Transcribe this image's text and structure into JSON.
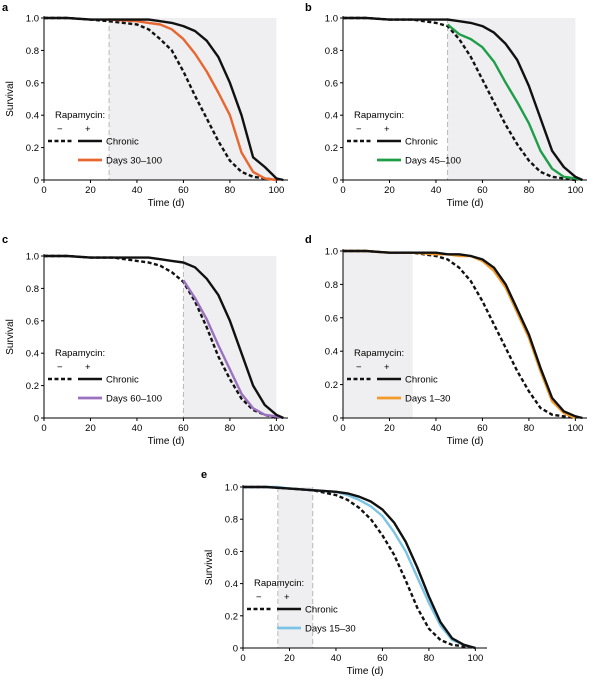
{
  "chart_data": [
    {
      "panel": "a",
      "type": "line",
      "xlabel": "Time (d)",
      "ylabel": "Survival",
      "xlim": [
        0,
        105
      ],
      "ylim": [
        0,
        1.0
      ],
      "xticks": [
        "0",
        "20",
        "40",
        "60",
        "80",
        "100"
      ],
      "yticks": [
        "0",
        "0.2",
        "0.4",
        "0.6",
        "0.8",
        "1.0"
      ],
      "shaded_window": [
        28,
        100
      ],
      "treatment_start_marker": 28,
      "legend": {
        "title": "Rapamycin:",
        "minus": "−",
        "plus": "+",
        "items": [
          "Chronic",
          "Days 30–100"
        ],
        "placement": "bottom-left"
      },
      "series": [
        {
          "role": "control",
          "style": "dashed",
          "color": "#111111",
          "x": [
            0,
            10,
            20,
            28,
            40,
            45,
            50,
            55,
            60,
            65,
            70,
            75,
            80,
            85,
            90,
            95,
            100
          ],
          "y": [
            1.0,
            1.0,
            0.99,
            0.98,
            0.96,
            0.93,
            0.87,
            0.8,
            0.67,
            0.52,
            0.38,
            0.24,
            0.12,
            0.05,
            0.02,
            0.01,
            0.0
          ]
        },
        {
          "role": "chronic",
          "name": "Chronic",
          "style": "solid",
          "color": "#111111",
          "x": [
            0,
            10,
            20,
            28,
            40,
            45,
            50,
            55,
            60,
            65,
            70,
            75,
            80,
            85,
            90,
            95,
            100,
            103
          ],
          "y": [
            1.0,
            1.0,
            0.99,
            0.99,
            0.99,
            0.99,
            0.98,
            0.97,
            0.95,
            0.92,
            0.86,
            0.76,
            0.6,
            0.4,
            0.14,
            0.08,
            0.01,
            0.0
          ]
        },
        {
          "role": "treated",
          "name": "Days 30–100",
          "style": "solid",
          "color": "#e8662f",
          "x": [
            28,
            40,
            45,
            50,
            55,
            60,
            65,
            70,
            75,
            80,
            85,
            90,
            95,
            100
          ],
          "y": [
            0.99,
            0.98,
            0.97,
            0.96,
            0.93,
            0.87,
            0.78,
            0.67,
            0.54,
            0.4,
            0.17,
            0.05,
            0.01,
            0.0
          ]
        }
      ]
    },
    {
      "panel": "b",
      "type": "line",
      "xlabel": "Time (d)",
      "ylabel": "",
      "xlim": [
        0,
        105
      ],
      "ylim": [
        0,
        1.0
      ],
      "xticks": [
        "0",
        "20",
        "40",
        "60",
        "80",
        "100"
      ],
      "yticks": [
        "0",
        "0.2",
        "0.4",
        "0.6",
        "0.8",
        "1.0"
      ],
      "shaded_window": [
        45,
        100
      ],
      "treatment_start_marker": 45,
      "legend": {
        "title": "Rapamycin:",
        "minus": "−",
        "plus": "+",
        "items": [
          "Chronic",
          "Days 45–100"
        ],
        "placement": "bottom-left"
      },
      "series": [
        {
          "role": "control",
          "style": "dashed",
          "color": "#111111",
          "x": [
            0,
            10,
            20,
            30,
            40,
            45,
            50,
            55,
            60,
            65,
            70,
            75,
            80,
            85,
            90,
            95,
            100
          ],
          "y": [
            1.0,
            1.0,
            0.99,
            0.99,
            0.97,
            0.95,
            0.87,
            0.76,
            0.62,
            0.48,
            0.34,
            0.22,
            0.12,
            0.05,
            0.02,
            0.01,
            0.0
          ]
        },
        {
          "role": "chronic",
          "name": "Chronic",
          "style": "solid",
          "color": "#111111",
          "x": [
            0,
            10,
            20,
            30,
            40,
            45,
            50,
            55,
            60,
            65,
            70,
            75,
            80,
            85,
            90,
            95,
            100,
            103
          ],
          "y": [
            1.0,
            1.0,
            0.99,
            0.99,
            0.99,
            0.99,
            0.98,
            0.97,
            0.95,
            0.91,
            0.84,
            0.74,
            0.58,
            0.38,
            0.18,
            0.08,
            0.02,
            0.0
          ]
        },
        {
          "role": "treated",
          "name": "Days 45–100",
          "style": "solid",
          "color": "#1e9e48",
          "x": [
            45,
            50,
            55,
            60,
            65,
            70,
            75,
            80,
            85,
            90,
            95,
            100,
            103
          ],
          "y": [
            0.96,
            0.9,
            0.87,
            0.82,
            0.73,
            0.6,
            0.48,
            0.35,
            0.18,
            0.07,
            0.02,
            0.01,
            0.0
          ]
        }
      ]
    },
    {
      "panel": "c",
      "type": "line",
      "xlabel": "Time (d)",
      "ylabel": "Survival",
      "xlim": [
        0,
        105
      ],
      "ylim": [
        0,
        1.0
      ],
      "xticks": [
        "0",
        "20",
        "40",
        "60",
        "80",
        "100"
      ],
      "yticks": [
        "0",
        "0.2",
        "0.4",
        "0.6",
        "0.8",
        "1.0"
      ],
      "shaded_window": [
        60,
        100
      ],
      "treatment_start_marker": 60,
      "legend": {
        "title": "Rapamycin:",
        "minus": "−",
        "plus": "+",
        "items": [
          "Chronic",
          "Days 60–100"
        ],
        "placement": "bottom-left"
      },
      "series": [
        {
          "role": "control",
          "style": "dashed",
          "color": "#111111",
          "x": [
            0,
            10,
            20,
            30,
            40,
            45,
            50,
            55,
            60,
            65,
            70,
            75,
            80,
            85,
            90,
            95,
            100
          ],
          "y": [
            1.0,
            1.0,
            0.99,
            0.99,
            0.97,
            0.96,
            0.94,
            0.9,
            0.84,
            0.72,
            0.56,
            0.38,
            0.24,
            0.12,
            0.05,
            0.02,
            0.0
          ]
        },
        {
          "role": "chronic",
          "name": "Chronic",
          "style": "solid",
          "color": "#111111",
          "x": [
            0,
            10,
            20,
            30,
            40,
            45,
            50,
            55,
            60,
            65,
            70,
            75,
            80,
            85,
            90,
            95,
            100,
            103
          ],
          "y": [
            1.0,
            1.0,
            0.99,
            0.99,
            0.99,
            0.99,
            0.98,
            0.97,
            0.96,
            0.93,
            0.86,
            0.76,
            0.6,
            0.4,
            0.2,
            0.08,
            0.02,
            0.0
          ]
        },
        {
          "role": "treated",
          "name": "Days 60–100",
          "style": "solid",
          "color": "#9b72c0",
          "x": [
            60,
            65,
            70,
            75,
            80,
            85,
            90,
            95,
            100,
            103
          ],
          "y": [
            0.85,
            0.74,
            0.61,
            0.45,
            0.3,
            0.15,
            0.06,
            0.02,
            0.01,
            0.0
          ]
        }
      ]
    },
    {
      "panel": "d",
      "type": "line",
      "xlabel": "Time (d)",
      "ylabel": "",
      "xlim": [
        0,
        105
      ],
      "ylim": [
        0,
        1.0
      ],
      "xticks": [
        "0",
        "20",
        "40",
        "60",
        "80",
        "100"
      ],
      "yticks": [
        "0",
        "0.2",
        "0.4",
        "0.6",
        "0.8",
        "1.0"
      ],
      "shaded_window": [
        0,
        30
      ],
      "treatment_start_marker": null,
      "legend": {
        "title": "Rapamycin:",
        "minus": "−",
        "plus": "+",
        "items": [
          "Chronic",
          "Days 1–30"
        ],
        "placement": "bottom-left"
      },
      "series": [
        {
          "role": "control",
          "style": "dashed",
          "color": "#111111",
          "x": [
            0,
            10,
            20,
            30,
            40,
            45,
            50,
            55,
            60,
            65,
            70,
            75,
            80,
            85,
            90,
            95,
            100
          ],
          "y": [
            1.0,
            1.0,
            0.99,
            0.99,
            0.97,
            0.95,
            0.9,
            0.82,
            0.7,
            0.56,
            0.42,
            0.28,
            0.16,
            0.06,
            0.02,
            0.01,
            0.0
          ]
        },
        {
          "role": "chronic",
          "name": "Chronic",
          "style": "solid",
          "color": "#111111",
          "x": [
            0,
            10,
            20,
            30,
            40,
            45,
            50,
            55,
            60,
            65,
            70,
            75,
            80,
            85,
            90,
            95,
            100,
            103
          ],
          "y": [
            1.0,
            1.0,
            0.99,
            0.99,
            0.99,
            0.98,
            0.98,
            0.97,
            0.95,
            0.9,
            0.8,
            0.65,
            0.5,
            0.3,
            0.12,
            0.04,
            0.01,
            0.0
          ]
        },
        {
          "role": "treated",
          "name": "Days 1–30",
          "style": "solid",
          "color": "#f49a2a",
          "x": [
            0,
            10,
            20,
            30,
            40,
            45,
            50,
            55,
            60,
            65,
            70,
            75,
            80,
            85,
            90,
            95,
            100
          ],
          "y": [
            1.0,
            1.0,
            0.99,
            0.99,
            0.98,
            0.98,
            0.97,
            0.97,
            0.94,
            0.88,
            0.78,
            0.63,
            0.48,
            0.28,
            0.1,
            0.03,
            0.0
          ]
        }
      ]
    },
    {
      "panel": "e",
      "type": "line",
      "xlabel": "Time (d)",
      "ylabel": "Survival",
      "xlim": [
        0,
        105
      ],
      "ylim": [
        0,
        1.0
      ],
      "xticks": [
        "0",
        "20",
        "40",
        "60",
        "80",
        "100"
      ],
      "yticks": [
        "0",
        "0.2",
        "0.4",
        "0.6",
        "0.8",
        "1.0"
      ],
      "shaded_window": [
        15,
        30
      ],
      "treatment_start_marker": 15,
      "treatment_end_marker": 30,
      "legend": {
        "title": "Rapamycin:",
        "minus": "−",
        "plus": "+",
        "items": [
          "Chronic",
          "Days 15–30"
        ],
        "placement": "bottom-left"
      },
      "series": [
        {
          "role": "control",
          "style": "dashed",
          "color": "#111111",
          "x": [
            0,
            10,
            20,
            30,
            40,
            45,
            50,
            55,
            60,
            65,
            70,
            75,
            80,
            85,
            90,
            95,
            100
          ],
          "y": [
            1.0,
            1.0,
            0.99,
            0.98,
            0.95,
            0.92,
            0.87,
            0.8,
            0.7,
            0.58,
            0.42,
            0.25,
            0.12,
            0.05,
            0.02,
            0.01,
            0.0
          ]
        },
        {
          "role": "chronic",
          "name": "Chronic",
          "style": "solid",
          "color": "#111111",
          "x": [
            0,
            10,
            20,
            30,
            40,
            45,
            50,
            55,
            60,
            65,
            70,
            75,
            80,
            85,
            90,
            95,
            100
          ],
          "y": [
            1.0,
            1.0,
            0.99,
            0.98,
            0.97,
            0.96,
            0.94,
            0.91,
            0.86,
            0.78,
            0.66,
            0.5,
            0.32,
            0.16,
            0.06,
            0.02,
            0.0
          ]
        },
        {
          "role": "treated",
          "name": "Days 15–30",
          "style": "solid",
          "color": "#7cc4e6",
          "x": [
            0,
            10,
            15,
            20,
            30,
            40,
            45,
            50,
            55,
            60,
            65,
            70,
            75,
            80,
            85,
            90,
            95,
            100
          ],
          "y": [
            1.0,
            1.0,
            1.0,
            0.99,
            0.98,
            0.97,
            0.95,
            0.92,
            0.88,
            0.82,
            0.72,
            0.6,
            0.44,
            0.28,
            0.14,
            0.05,
            0.02,
            0.0
          ]
        }
      ]
    }
  ]
}
